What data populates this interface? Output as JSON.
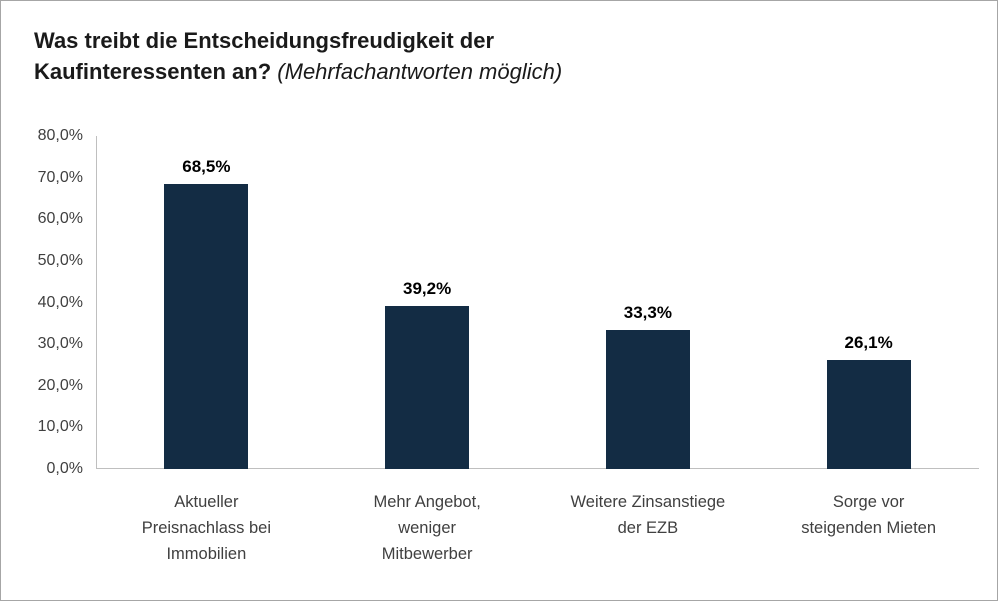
{
  "header": {
    "title": "Was treibt die Entscheidungsfreudigkeit der Kaufinteressenten an?",
    "subtitle": "(Mehrfachantworten möglich)"
  },
  "chart_data": {
    "type": "bar",
    "title": "Was treibt die Entscheidungsfreudigkeit der Kaufinteressenten an?",
    "subtitle": "(Mehrfachantworten möglich)",
    "categories": [
      "Aktueller Preisnachlass bei Immobilien",
      "Mehr Angebot, weniger Mitbewerber",
      "Weitere Zinsanstiege der EZB",
      "Sorge vor steigenden Mieten"
    ],
    "category_label_lines": [
      [
        "Aktueller",
        "Preisnachlass bei",
        "Immobilien"
      ],
      [
        "Mehr Angebot,",
        "weniger",
        "Mitbewerber"
      ],
      [
        "Weitere Zinsanstiege",
        "der EZB"
      ],
      [
        "Sorge vor",
        "steigenden Mieten"
      ]
    ],
    "values": [
      68.5,
      39.2,
      33.3,
      26.1
    ],
    "value_labels": [
      "68,5%",
      "39,2%",
      "33,3%",
      "26,1%"
    ],
    "ylim": [
      0,
      80
    ],
    "y_tick_step": 10,
    "y_tick_labels": [
      "0,0%",
      "10,0%",
      "20,0%",
      "30,0%",
      "40,0%",
      "50,0%",
      "60,0%",
      "70,0%",
      "80,0%"
    ],
    "grid": false,
    "legend": "none",
    "bar_color": "#132c44",
    "value_label_color": "#000000",
    "axis_color": "#bfbfbf",
    "tick_label_color": "#404040"
  }
}
